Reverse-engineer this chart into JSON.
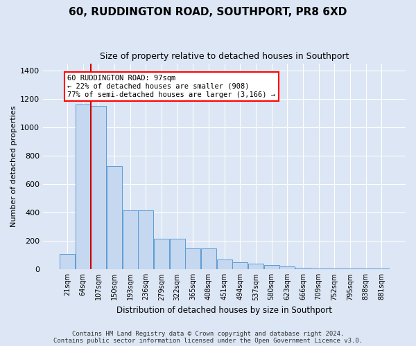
{
  "title": "60, RUDDINGTON ROAD, SOUTHPORT, PR8 6XD",
  "subtitle": "Size of property relative to detached houses in Southport",
  "xlabel": "Distribution of detached houses by size in Southport",
  "ylabel": "Number of detached properties",
  "categories": [
    "21sqm",
    "64sqm",
    "107sqm",
    "150sqm",
    "193sqm",
    "236sqm",
    "279sqm",
    "322sqm",
    "365sqm",
    "408sqm",
    "451sqm",
    "494sqm",
    "537sqm",
    "580sqm",
    "623sqm",
    "666sqm",
    "709sqm",
    "752sqm",
    "795sqm",
    "838sqm",
    "881sqm"
  ],
  "values": [
    110,
    1160,
    1150,
    730,
    415,
    415,
    215,
    215,
    150,
    150,
    70,
    48,
    40,
    30,
    20,
    10,
    5,
    5,
    5,
    5,
    5
  ],
  "bar_color": "#c5d8f0",
  "bar_edge_color": "#5b9bd5",
  "vline_x": 1.5,
  "vline_color": "#cc0000",
  "annotation_line1": "60 RUDDINGTON ROAD: 97sqm",
  "annotation_line2": "← 22% of detached houses are smaller (908)",
  "annotation_line3": "77% of semi-detached houses are larger (3,166) →",
  "ylim": [
    0,
    1450
  ],
  "yticks": [
    0,
    200,
    400,
    600,
    800,
    1000,
    1200,
    1400
  ],
  "footer": "Contains HM Land Registry data © Crown copyright and database right 2024.\nContains public sector information licensed under the Open Government Licence v3.0.",
  "bg_color": "#dce6f5",
  "grid_color": "#ffffff",
  "title_fontsize": 11,
  "subtitle_fontsize": 9,
  "ylabel_fontsize": 8,
  "xlabel_fontsize": 8.5,
  "tick_fontsize": 7,
  "footer_fontsize": 6.5
}
